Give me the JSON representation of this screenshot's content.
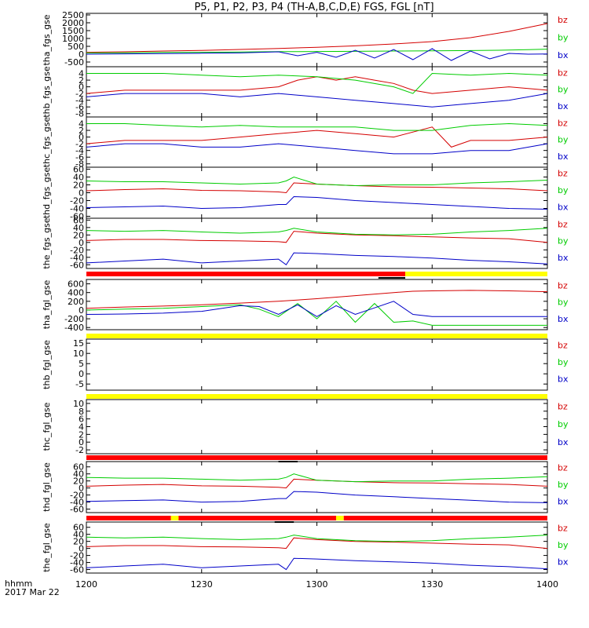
{
  "title": "P5, P1, P2, P3, P4 (TH-A,B,C,D,E) FGS, FGL [nT]",
  "time_axis": {
    "label_lines": [
      "hhmm",
      "2017 Mar 22"
    ],
    "ticks": [
      "1200",
      "1230",
      "1300",
      "1330",
      "1400"
    ],
    "range": [
      "12:00",
      "14:00"
    ]
  },
  "legend_labels": [
    "bz",
    "by",
    "bx"
  ],
  "colors": {
    "bz": "#d40000",
    "by": "#00cc00",
    "bx": "#0000c8",
    "flag_red": "#ff0000",
    "flag_yellow": "#ffff00",
    "frame": "#000000"
  },
  "chart_data": [
    {
      "type": "line",
      "ylabel": "tha_fgs_gse",
      "ylim": [
        -800,
        2600
      ],
      "yticks": [
        "2500",
        "2000",
        "1500",
        "1000",
        "500",
        "0",
        "-500"
      ],
      "x_unit": "minutes after 12:00",
      "series": [
        {
          "name": "bz",
          "x": [
            0,
            10,
            20,
            30,
            40,
            50,
            60,
            70,
            80,
            90,
            100,
            110,
            120
          ],
          "values": [
            120,
            150,
            200,
            240,
            300,
            360,
            440,
            530,
            650,
            800,
            1050,
            1450,
            1950
          ]
        },
        {
          "name": "by",
          "x": [
            0,
            10,
            20,
            30,
            40,
            50,
            60,
            70,
            80,
            90,
            100,
            110,
            115,
            120
          ],
          "values": [
            80,
            90,
            110,
            120,
            140,
            160,
            170,
            180,
            200,
            210,
            230,
            260,
            290,
            320
          ]
        },
        {
          "name": "bx",
          "x": [
            0,
            10,
            20,
            30,
            40,
            50,
            55,
            60,
            65,
            70,
            75,
            80,
            85,
            90,
            95,
            100,
            105,
            110,
            115,
            120
          ],
          "values": [
            0,
            20,
            40,
            60,
            80,
            150,
            -100,
            120,
            -200,
            250,
            -250,
            300,
            -350,
            350,
            -400,
            200,
            -300,
            50,
            0,
            10
          ]
        }
      ]
    },
    {
      "type": "line",
      "ylabel": "thb_fgs_gse",
      "ylim": [
        -9,
        6
      ],
      "yticks": [
        "4",
        "2",
        "0",
        "-2",
        "-4",
        "-6",
        "-8"
      ],
      "x_unit": "minutes after 12:00",
      "series": [
        {
          "name": "bz",
          "x": [
            0,
            10,
            20,
            30,
            40,
            50,
            55,
            60,
            65,
            70,
            75,
            80,
            85,
            90,
            100,
            110,
            120
          ],
          "values": [
            -2,
            -1,
            -1,
            -1,
            -1,
            0,
            2,
            3,
            2,
            3,
            2,
            1,
            -1,
            -2,
            -1,
            0,
            -1
          ]
        },
        {
          "name": "by",
          "x": [
            0,
            10,
            20,
            30,
            40,
            50,
            60,
            70,
            80,
            85,
            90,
            100,
            110,
            120
          ],
          "values": [
            4,
            4,
            4,
            3.5,
            3,
            3.5,
            3,
            2,
            0,
            -2,
            4,
            3.5,
            4,
            3.5
          ]
        },
        {
          "name": "bx",
          "x": [
            0,
            10,
            20,
            30,
            40,
            50,
            60,
            70,
            80,
            90,
            100,
            110,
            120
          ],
          "values": [
            -3,
            -2,
            -2,
            -2,
            -3,
            -2,
            -3,
            -4,
            -5,
            -6,
            -5,
            -4,
            -2
          ]
        }
      ]
    },
    {
      "type": "line",
      "ylabel": "thc_fgs_gse",
      "ylim": [
        -9,
        6
      ],
      "yticks": [
        "4",
        "2",
        "0",
        "-2",
        "-4",
        "-6",
        "-8"
      ],
      "x_unit": "minutes after 12:00",
      "series": [
        {
          "name": "bz",
          "x": [
            0,
            10,
            20,
            30,
            40,
            50,
            60,
            70,
            80,
            90,
            95,
            100,
            110,
            120
          ],
          "values": [
            -2,
            -1,
            -1,
            -1,
            0,
            1,
            2,
            1,
            0,
            3,
            -3,
            -1,
            -1,
            0
          ]
        },
        {
          "name": "by",
          "x": [
            0,
            10,
            20,
            30,
            40,
            50,
            60,
            70,
            80,
            90,
            100,
            110,
            120
          ],
          "values": [
            4,
            4,
            3.5,
            3,
            3.5,
            3,
            3,
            3,
            2,
            2,
            3.5,
            4,
            3.5
          ]
        },
        {
          "name": "bx",
          "x": [
            0,
            10,
            20,
            30,
            40,
            50,
            60,
            70,
            80,
            90,
            100,
            110,
            120
          ],
          "values": [
            -3,
            -2,
            -2,
            -3,
            -3,
            -2,
            -3,
            -4,
            -5,
            -5,
            -4,
            -4,
            -2
          ]
        }
      ]
    },
    {
      "type": "line",
      "ylabel": "thd_fgs_gse",
      "ylim": [
        -65,
        65
      ],
      "yticks": [
        "60",
        "40",
        "20",
        "0",
        "-20",
        "-40",
        "-60"
      ],
      "x_unit": "minutes after 12:00",
      "series": [
        {
          "name": "bz",
          "x": [
            0,
            10,
            20,
            30,
            40,
            50,
            52,
            54,
            60,
            70,
            80,
            90,
            100,
            110,
            120
          ],
          "values": [
            5,
            8,
            10,
            6,
            5,
            2,
            0,
            25,
            22,
            18,
            15,
            14,
            12,
            10,
            5
          ]
        },
        {
          "name": "by",
          "x": [
            0,
            10,
            20,
            30,
            40,
            50,
            52,
            54,
            60,
            70,
            80,
            90,
            100,
            110,
            120
          ],
          "values": [
            30,
            28,
            28,
            25,
            22,
            25,
            30,
            40,
            22,
            18,
            20,
            20,
            25,
            28,
            32
          ]
        },
        {
          "name": "bx",
          "x": [
            0,
            10,
            20,
            30,
            40,
            50,
            52,
            54,
            60,
            70,
            80,
            90,
            100,
            110,
            120
          ],
          "values": [
            -38,
            -36,
            -34,
            -40,
            -38,
            -30,
            -30,
            -10,
            -12,
            -20,
            -25,
            -30,
            -35,
            -40,
            -42
          ]
        }
      ]
    },
    {
      "type": "line",
      "ylabel": "the_fgs_gse",
      "ylim": [
        -70,
        65
      ],
      "yticks": [
        "60",
        "40",
        "20",
        "0",
        "-20",
        "-40",
        "-60"
      ],
      "x_unit": "minutes after 12:00",
      "series": [
        {
          "name": "bz",
          "x": [
            0,
            10,
            20,
            30,
            40,
            50,
            52,
            54,
            60,
            70,
            80,
            90,
            100,
            110,
            120
          ],
          "values": [
            5,
            8,
            8,
            5,
            4,
            2,
            0,
            30,
            25,
            20,
            18,
            15,
            12,
            10,
            0
          ]
        },
        {
          "name": "by",
          "x": [
            0,
            10,
            20,
            30,
            40,
            50,
            52,
            54,
            60,
            70,
            80,
            90,
            100,
            110,
            120
          ],
          "values": [
            32,
            30,
            32,
            28,
            25,
            28,
            32,
            38,
            28,
            22,
            20,
            22,
            28,
            32,
            38
          ]
        },
        {
          "name": "bx",
          "x": [
            0,
            10,
            20,
            30,
            40,
            50,
            52,
            54,
            60,
            70,
            80,
            90,
            100,
            110,
            120
          ],
          "values": [
            -55,
            -50,
            -45,
            -55,
            -50,
            -45,
            -60,
            -28,
            -30,
            -35,
            -38,
            -42,
            -48,
            -52,
            -58
          ]
        }
      ]
    },
    {
      "type": "line",
      "ylabel": "tha_fgl_gse",
      "ylim": [
        -450,
        700
      ],
      "yticks": [
        "600",
        "400",
        "200",
        "0",
        "-200",
        "-400"
      ],
      "x_unit": "minutes after 12:00",
      "series": [
        {
          "name": "bz",
          "x": [
            0,
            10,
            20,
            30,
            40,
            50,
            60,
            70,
            80,
            85,
            90,
            100,
            110,
            120
          ],
          "values": [
            40,
            70,
            90,
            120,
            160,
            200,
            260,
            330,
            400,
            430,
            440,
            450,
            440,
            420
          ]
        },
        {
          "name": "by",
          "x": [
            0,
            10,
            20,
            30,
            40,
            45,
            50,
            55,
            60,
            65,
            70,
            75,
            80,
            85,
            90,
            95,
            100,
            110,
            120
          ],
          "values": [
            0,
            20,
            40,
            80,
            120,
            20,
            -150,
            150,
            -200,
            200,
            -280,
            150,
            -280,
            -250,
            -350,
            -350,
            -350,
            -350,
            -350
          ]
        },
        {
          "name": "bx",
          "x": [
            0,
            10,
            20,
            30,
            40,
            45,
            50,
            55,
            60,
            65,
            70,
            75,
            80,
            85,
            90,
            95,
            100,
            110,
            120
          ],
          "values": [
            -100,
            -90,
            -70,
            -30,
            100,
            80,
            -100,
            120,
            -150,
            100,
            -100,
            50,
            200,
            -100,
            -150,
            -150,
            -150,
            -150,
            -150
          ]
        }
      ]
    },
    {
      "type": "line",
      "ylabel": "thb_fgl_gse",
      "ylim": [
        -8,
        17
      ],
      "yticks": [
        "15",
        "10",
        "5",
        "0",
        "-5"
      ],
      "series": []
    },
    {
      "type": "line",
      "ylabel": "thc_fgl_gse",
      "ylim": [
        -3,
        11
      ],
      "yticks": [
        "10",
        "8",
        "6",
        "4",
        "2",
        "0",
        "-2"
      ],
      "series": []
    },
    {
      "type": "line",
      "ylabel": "thd_fgl_gse",
      "ylim": [
        -70,
        75
      ],
      "yticks": [
        "60",
        "40",
        "20",
        "0",
        "-20",
        "-40",
        "-60"
      ],
      "x_unit": "minutes after 12:00",
      "series": [
        {
          "name": "bz",
          "x": [
            0,
            10,
            20,
            30,
            40,
            50,
            52,
            54,
            60,
            70,
            80,
            90,
            100,
            110,
            120
          ],
          "values": [
            5,
            8,
            10,
            6,
            5,
            2,
            0,
            25,
            22,
            18,
            15,
            14,
            12,
            10,
            5
          ]
        },
        {
          "name": "by",
          "x": [
            0,
            10,
            20,
            30,
            40,
            50,
            52,
            54,
            60,
            70,
            80,
            90,
            100,
            110,
            120
          ],
          "values": [
            30,
            28,
            28,
            25,
            22,
            25,
            30,
            40,
            22,
            18,
            20,
            20,
            25,
            28,
            32
          ]
        },
        {
          "name": "bx",
          "x": [
            0,
            10,
            20,
            30,
            40,
            50,
            52,
            54,
            60,
            70,
            80,
            90,
            100,
            110,
            120
          ],
          "values": [
            -38,
            -36,
            -34,
            -40,
            -38,
            -30,
            -30,
            -10,
            -12,
            -20,
            -25,
            -30,
            -35,
            -40,
            -42
          ]
        }
      ]
    },
    {
      "type": "line",
      "ylabel": "the_fgl_gse",
      "ylim": [
        -70,
        75
      ],
      "yticks": [
        "60",
        "40",
        "20",
        "0",
        "-20",
        "-40",
        "-60"
      ],
      "x_unit": "minutes after 12:00",
      "series": [
        {
          "name": "bz",
          "x": [
            0,
            10,
            20,
            30,
            40,
            50,
            52,
            54,
            60,
            70,
            80,
            90,
            100,
            110,
            120
          ],
          "values": [
            5,
            8,
            8,
            5,
            4,
            2,
            0,
            30,
            25,
            20,
            18,
            15,
            12,
            10,
            0
          ]
        },
        {
          "name": "by",
          "x": [
            0,
            10,
            20,
            30,
            40,
            50,
            52,
            54,
            60,
            70,
            80,
            90,
            100,
            110,
            120
          ],
          "values": [
            32,
            30,
            32,
            28,
            25,
            28,
            32,
            38,
            28,
            22,
            20,
            22,
            28,
            32,
            38
          ]
        },
        {
          "name": "bx",
          "x": [
            0,
            10,
            20,
            30,
            40,
            50,
            52,
            54,
            60,
            70,
            80,
            90,
            100,
            110,
            120
          ],
          "values": [
            -55,
            -50,
            -45,
            -55,
            -50,
            -45,
            -60,
            -28,
            -30,
            -35,
            -38,
            -42,
            -48,
            -52,
            -58
          ]
        }
      ]
    }
  ],
  "flag_bars": [
    {
      "after_panel": 5,
      "segments": [
        {
          "color": "red",
          "from": 0,
          "to": 83
        },
        {
          "color": "yellow",
          "from": 83,
          "to": 120
        }
      ],
      "marks": [
        {
          "from": 76,
          "to": 83
        }
      ]
    },
    {
      "after_panel": 6,
      "segments": [
        {
          "color": "yellow",
          "from": 0,
          "to": 120
        }
      ],
      "marks": []
    },
    {
      "after_panel": 7,
      "segments": [
        {
          "color": "yellow",
          "from": 0,
          "to": 120
        }
      ],
      "marks": []
    },
    {
      "after_panel": 8,
      "segments": [
        {
          "color": "red",
          "from": 0,
          "to": 120
        }
      ],
      "marks": [
        {
          "from": 50,
          "to": 55
        }
      ]
    },
    {
      "after_panel": 9,
      "segments": [
        {
          "color": "red",
          "from": 0,
          "to": 22
        },
        {
          "color": "yellow",
          "from": 22,
          "to": 24
        },
        {
          "color": "red",
          "from": 24,
          "to": 65
        },
        {
          "color": "yellow",
          "from": 65,
          "to": 67
        },
        {
          "color": "red",
          "from": 67,
          "to": 120
        }
      ],
      "marks": [
        {
          "from": 49,
          "to": 54
        }
      ]
    }
  ]
}
